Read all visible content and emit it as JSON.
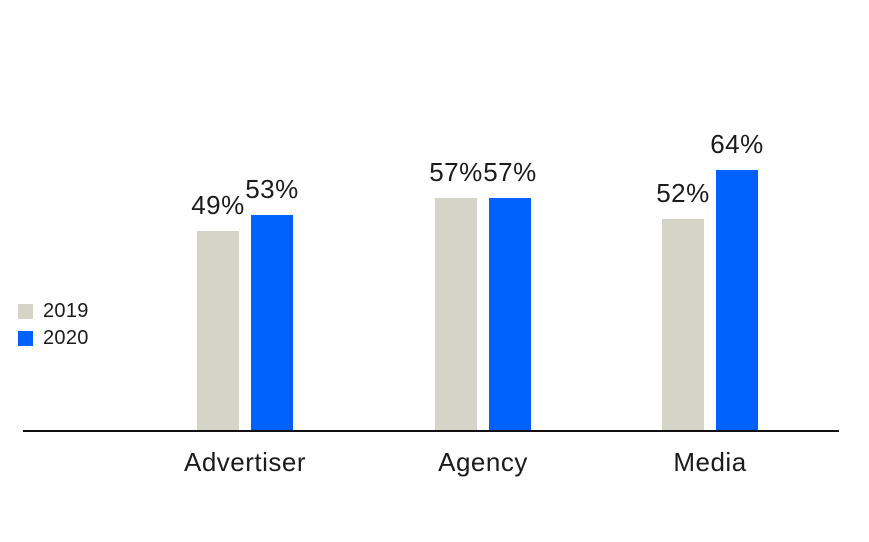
{
  "colors": {
    "background": "#ffffff",
    "axis": "#111111",
    "text": "#1b1b1b",
    "series": [
      "#D4D4C9",
      "#0061FE"
    ]
  },
  "chart_data": {
    "type": "bar",
    "title": "",
    "xlabel": "",
    "ylabel": "",
    "categories": [
      "Advertiser",
      "Agency",
      "Media"
    ],
    "series": [
      {
        "name": "2019",
        "values": [
          49,
          57,
          52
        ],
        "labels": [
          "49%",
          "57%",
          "52%"
        ],
        "color": "#D4D4C9"
      },
      {
        "name": "2020",
        "values": [
          53,
          57,
          64
        ],
        "labels": [
          "53%",
          "57%",
          "64%"
        ],
        "color": "#0061FE"
      }
    ],
    "value_unit": "%",
    "ylim": [
      0,
      100
    ],
    "grid": false,
    "legend_position": "middle-left"
  }
}
